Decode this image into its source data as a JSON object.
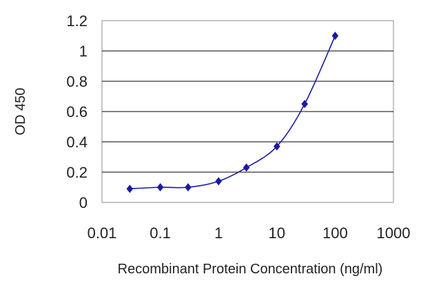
{
  "chart_data": {
    "type": "line",
    "xlabel": "Recombinant Protein Concentration (ng/ml)",
    "ylabel": "OD 450",
    "x_scale": "log",
    "xlim": [
      0.01,
      1000
    ],
    "ylim": [
      0,
      1.2
    ],
    "grid": "horizontal",
    "x_ticks": [
      "0.01",
      "0.1",
      "1",
      "10",
      "100",
      "1000"
    ],
    "y_ticks": [
      "0",
      "0.2",
      "0.4",
      "0.6",
      "0.8",
      "1",
      "1.2"
    ],
    "colors": {
      "series": "#1a1aa8",
      "grid": "#000000",
      "plot_border": "#8c8c8c"
    },
    "series": [
      {
        "x": [
          0.03,
          0.1,
          0.3,
          1,
          3,
          10,
          30,
          100
        ],
        "y": [
          0.09,
          0.1,
          0.1,
          0.14,
          0.23,
          0.37,
          0.65,
          1.1
        ]
      }
    ]
  }
}
